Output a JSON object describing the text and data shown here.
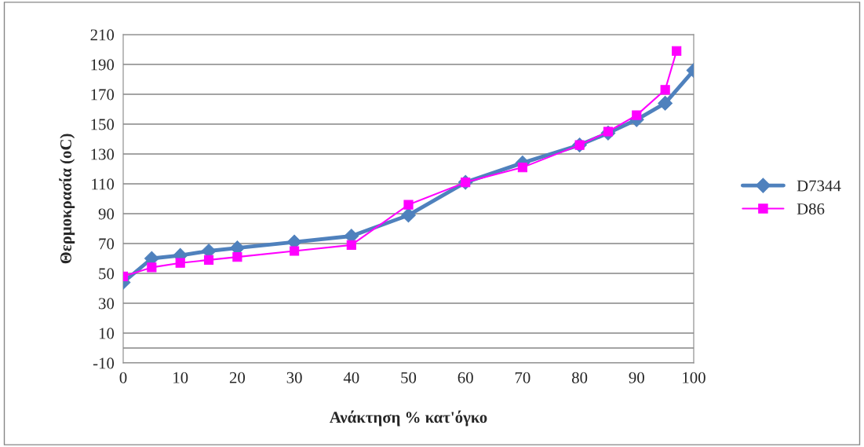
{
  "chart_data": {
    "type": "line",
    "xlabel": "Ανάκτηση % κατ'όγκο",
    "ylabel": "Θερμοκρασία (oC)",
    "xlim": [
      0,
      100
    ],
    "xticks": [
      0,
      10,
      20,
      30,
      40,
      50,
      60,
      70,
      80,
      90,
      100
    ],
    "ylim": [
      -10,
      210
    ],
    "yticks": [
      -10,
      10,
      30,
      50,
      70,
      90,
      110,
      130,
      150,
      170,
      190,
      210
    ],
    "grid": "y",
    "legend": "right",
    "ref_lines": [
      {
        "axis": "y",
        "value": 0,
        "color": "#868686"
      }
    ],
    "series": [
      {
        "name": "D7344",
        "color": "#4f81bd",
        "marker": "diamond",
        "x": [
          0,
          5,
          10,
          15,
          20,
          30,
          40,
          50,
          60,
          70,
          80,
          85,
          90,
          95,
          100
        ],
        "values": [
          44,
          60,
          62,
          65,
          67,
          71,
          75,
          89,
          111,
          124,
          136,
          144,
          153,
          164,
          186
        ]
      },
      {
        "name": "D86",
        "color": "#ff00ff",
        "marker": "square",
        "x": [
          0,
          5,
          10,
          15,
          20,
          30,
          40,
          50,
          60,
          70,
          80,
          85,
          90,
          95,
          97
        ],
        "values": [
          48,
          54,
          57,
          59,
          61,
          65,
          69,
          96,
          111,
          121,
          136,
          145,
          156,
          173,
          199
        ]
      }
    ]
  }
}
